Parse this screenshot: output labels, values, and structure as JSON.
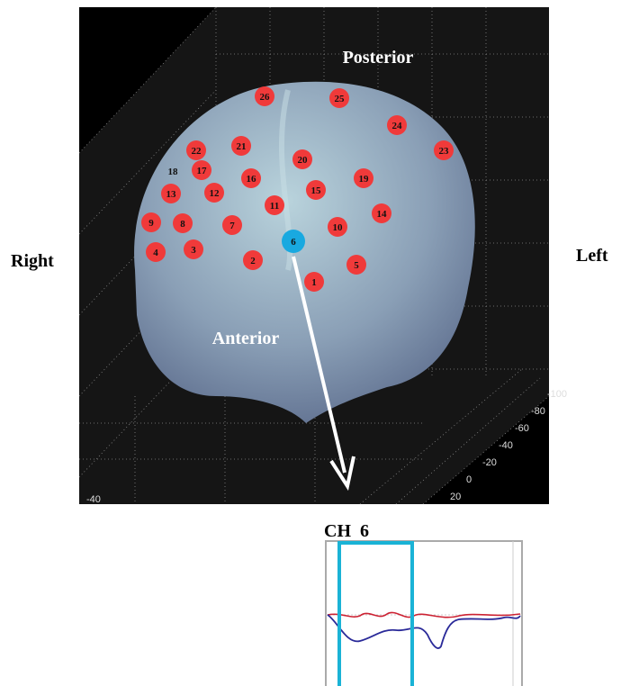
{
  "labels": {
    "posterior": "Posterior",
    "anterior": "Anterior",
    "right": "Right",
    "left": "Left"
  },
  "channels": [
    "1",
    "2",
    "3",
    "4",
    "5",
    "6",
    "7",
    "8",
    "9",
    "10",
    "11",
    "12",
    "13",
    "14",
    "15",
    "16",
    "17",
    "18",
    "19",
    "20",
    "21",
    "22",
    "23",
    "24",
    "25",
    "26"
  ],
  "axis_ticks": [
    "-100",
    "-80",
    "-60",
    "-40",
    "-20",
    "0",
    "20"
  ],
  "bottom_tick": "-40",
  "inset": {
    "title": "CH  6"
  }
}
